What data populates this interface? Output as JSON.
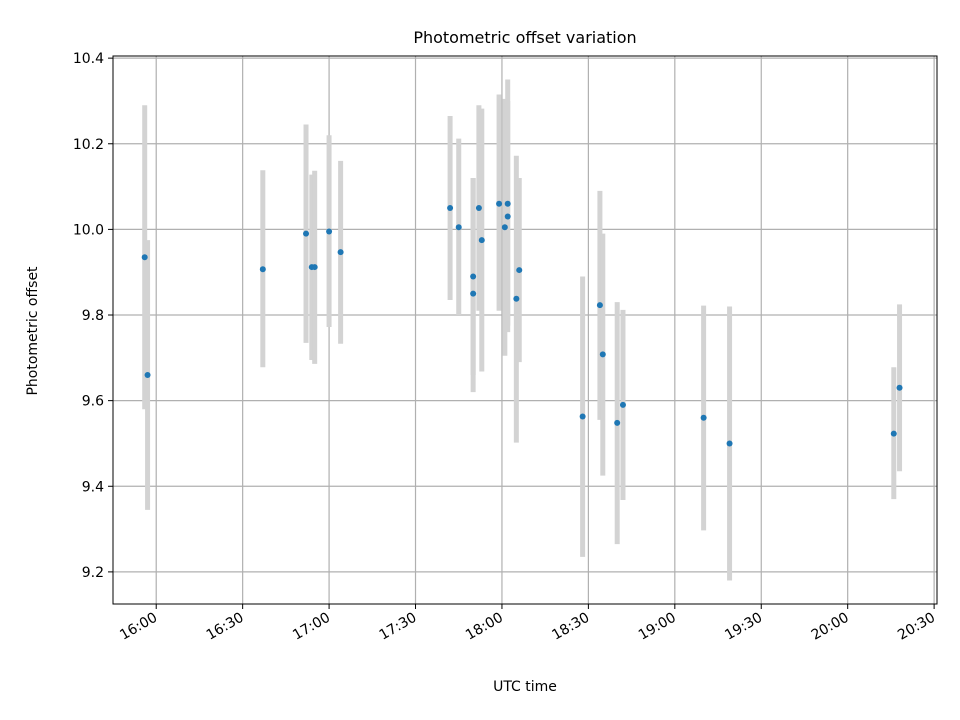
{
  "chart_data": {
    "type": "scatter",
    "title": "Photometric offset variation",
    "xlabel": "UTC time",
    "ylabel": "Photometric offset",
    "x_unit": "UTC time (HH:MM)",
    "xlim": [
      "15:45",
      "20:31"
    ],
    "ylim": [
      9.125,
      10.405
    ],
    "xticks": [
      "16:00",
      "16:30",
      "17:00",
      "17:30",
      "18:00",
      "18:30",
      "19:00",
      "19:30",
      "20:00",
      "20:30"
    ],
    "yticks": [
      9.2,
      9.4,
      9.6,
      9.8,
      10.0,
      10.2,
      10.4
    ],
    "grid": true,
    "marker_color": "#1f77b4",
    "errorbar_color": "#d3d3d3",
    "points": [
      {
        "x": "15:56",
        "y": 9.935,
        "ylow": 9.58,
        "yhigh": 10.29
      },
      {
        "x": "15:57",
        "y": 9.66,
        "ylow": 9.345,
        "yhigh": 9.975
      },
      {
        "x": "16:37",
        "y": 9.907,
        "ylow": 9.678,
        "yhigh": 10.138
      },
      {
        "x": "16:52",
        "y": 9.99,
        "ylow": 9.735,
        "yhigh": 10.245
      },
      {
        "x": "16:54",
        "y": 9.912,
        "ylow": 9.695,
        "yhigh": 10.128
      },
      {
        "x": "16:55",
        "y": 9.912,
        "ylow": 9.686,
        "yhigh": 10.137
      },
      {
        "x": "17:00",
        "y": 9.995,
        "ylow": 9.772,
        "yhigh": 10.22
      },
      {
        "x": "17:04",
        "y": 9.947,
        "ylow": 9.733,
        "yhigh": 10.16
      },
      {
        "x": "17:42",
        "y": 10.05,
        "ylow": 9.835,
        "yhigh": 10.265
      },
      {
        "x": "17:45",
        "y": 10.005,
        "ylow": 9.8,
        "yhigh": 10.212
      },
      {
        "x": "17:50",
        "y": 9.85,
        "ylow": 9.62,
        "yhigh": 10.12
      },
      {
        "x": "17:50",
        "y": 9.89,
        "ylow": 9.66,
        "yhigh": 10.12
      },
      {
        "x": "17:52",
        "y": 10.05,
        "ylow": 9.81,
        "yhigh": 10.29
      },
      {
        "x": "17:53",
        "y": 9.975,
        "ylow": 9.668,
        "yhigh": 10.282
      },
      {
        "x": "17:59",
        "y": 10.06,
        "ylow": 9.81,
        "yhigh": 10.315
      },
      {
        "x": "18:01",
        "y": 10.005,
        "ylow": 9.705,
        "yhigh": 10.305
      },
      {
        "x": "18:02",
        "y": 10.03,
        "ylow": 9.76,
        "yhigh": 10.3
      },
      {
        "x": "18:02",
        "y": 10.06,
        "ylow": 9.775,
        "yhigh": 10.35
      },
      {
        "x": "18:05",
        "y": 9.838,
        "ylow": 9.502,
        "yhigh": 10.172
      },
      {
        "x": "18:06",
        "y": 9.905,
        "ylow": 9.69,
        "yhigh": 10.12
      },
      {
        "x": "18:28",
        "y": 9.563,
        "ylow": 9.235,
        "yhigh": 9.89
      },
      {
        "x": "18:34",
        "y": 9.823,
        "ylow": 9.555,
        "yhigh": 10.09
      },
      {
        "x": "18:35",
        "y": 9.708,
        "ylow": 9.425,
        "yhigh": 9.99
      },
      {
        "x": "18:40",
        "y": 9.548,
        "ylow": 9.265,
        "yhigh": 9.83
      },
      {
        "x": "18:42",
        "y": 9.59,
        "ylow": 9.368,
        "yhigh": 9.812
      },
      {
        "x": "19:10",
        "y": 9.56,
        "ylow": 9.297,
        "yhigh": 9.822
      },
      {
        "x": "19:19",
        "y": 9.5,
        "ylow": 9.18,
        "yhigh": 9.82
      },
      {
        "x": "20:16",
        "y": 9.523,
        "ylow": 9.37,
        "yhigh": 9.678
      },
      {
        "x": "20:18",
        "y": 9.63,
        "ylow": 9.435,
        "yhigh": 9.825
      }
    ]
  }
}
